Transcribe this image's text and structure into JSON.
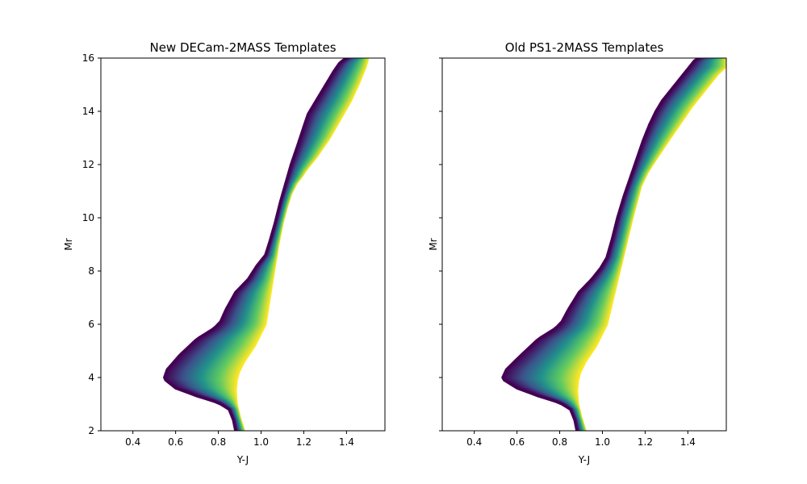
{
  "chart_data": [
    {
      "type": "line",
      "title": "New DECam-2MASS Templates",
      "xlabel": "Y-J",
      "ylabel": "Mr",
      "xlim": [
        0.25,
        1.58
      ],
      "ylim": [
        2,
        16
      ],
      "xticks": [
        0.4,
        0.6,
        0.8,
        1.0,
        1.2,
        1.4
      ],
      "yticks": [
        2,
        4,
        6,
        8,
        10,
        12,
        14,
        16
      ],
      "show_yticklabels": true,
      "grid": false,
      "colormap": [
        "#440154",
        "#3b528b",
        "#21918c",
        "#5ec962",
        "#fde725"
      ],
      "series_count": 40,
      "series_bluest": {
        "x": [
          0.88,
          0.87,
          0.85,
          0.8,
          0.7,
          0.6,
          0.545,
          0.56,
          0.62,
          0.7,
          0.78,
          0.81,
          0.835,
          0.88,
          0.94,
          0.98,
          1.02,
          1.04,
          1.065,
          1.09,
          1.115,
          1.14,
          1.17,
          1.205,
          1.22,
          1.25,
          1.28,
          1.31,
          1.34,
          1.37,
          1.4
        ],
        "y": [
          2.0,
          2.4,
          2.8,
          3.05,
          3.3,
          3.6,
          3.95,
          4.3,
          4.85,
          5.45,
          5.85,
          6.1,
          6.55,
          7.2,
          7.7,
          8.2,
          8.6,
          9.1,
          9.8,
          10.6,
          11.3,
          12.0,
          12.7,
          13.55,
          13.9,
          14.3,
          14.7,
          15.1,
          15.5,
          15.85,
          16.0
        ]
      },
      "series_reddest": {
        "x": [
          0.92,
          0.9,
          0.885,
          0.88,
          0.885,
          0.895,
          0.92,
          0.97,
          1.02,
          1.04,
          1.06,
          1.08,
          1.1,
          1.12,
          1.14,
          1.165,
          1.19,
          1.21,
          1.26,
          1.32,
          1.37,
          1.42,
          1.46,
          1.49,
          1.5
        ],
        "y": [
          2.0,
          2.5,
          3.0,
          3.5,
          3.9,
          4.2,
          4.6,
          5.2,
          6.0,
          7.0,
          8.0,
          9.0,
          9.8,
          10.4,
          10.9,
          11.3,
          11.55,
          11.8,
          12.3,
          13.0,
          13.7,
          14.4,
          15.1,
          15.7,
          16.0
        ]
      }
    },
    {
      "type": "line",
      "title": "Old PS1-2MASS Templates",
      "xlabel": "Y-J",
      "ylabel": "Mr",
      "xlim": [
        0.25,
        1.58
      ],
      "ylim": [
        2,
        16
      ],
      "xticks": [
        0.4,
        0.6,
        0.8,
        1.0,
        1.2,
        1.4
      ],
      "yticks": [
        2,
        4,
        6,
        8,
        10,
        12,
        14,
        16
      ],
      "show_yticklabels": false,
      "grid": false,
      "colormap": [
        "#440154",
        "#3b528b",
        "#21918c",
        "#5ec962",
        "#fde725"
      ],
      "series_count": 40,
      "series_bluest": {
        "x": [
          0.88,
          0.87,
          0.85,
          0.8,
          0.7,
          0.6,
          0.53,
          0.55,
          0.62,
          0.7,
          0.78,
          0.81,
          0.84,
          0.89,
          0.95,
          0.99,
          1.02,
          1.045,
          1.07,
          1.1,
          1.13,
          1.16,
          1.19,
          1.22,
          1.25,
          1.28,
          1.32,
          1.36,
          1.4,
          1.43,
          1.45
        ],
        "y": [
          2.0,
          2.4,
          2.8,
          3.05,
          3.3,
          3.6,
          3.95,
          4.3,
          4.85,
          5.45,
          5.85,
          6.1,
          6.55,
          7.2,
          7.7,
          8.1,
          8.5,
          9.2,
          10.0,
          10.8,
          11.5,
          12.2,
          12.9,
          13.5,
          14.0,
          14.4,
          14.8,
          15.2,
          15.6,
          15.9,
          16.0
        ]
      },
      "series_reddest": {
        "x": [
          0.92,
          0.9,
          0.885,
          0.88,
          0.885,
          0.895,
          0.92,
          0.97,
          1.02,
          1.05,
          1.08,
          1.11,
          1.14,
          1.16,
          1.18,
          1.21,
          1.25,
          1.3,
          1.36,
          1.42,
          1.48,
          1.54,
          1.58
        ],
        "y": [
          2.0,
          2.5,
          3.0,
          3.5,
          3.9,
          4.2,
          4.6,
          5.2,
          6.0,
          7.0,
          8.0,
          9.0,
          10.0,
          10.6,
          11.2,
          11.7,
          12.2,
          12.8,
          13.5,
          14.2,
          14.8,
          15.4,
          15.7
        ]
      }
    }
  ]
}
